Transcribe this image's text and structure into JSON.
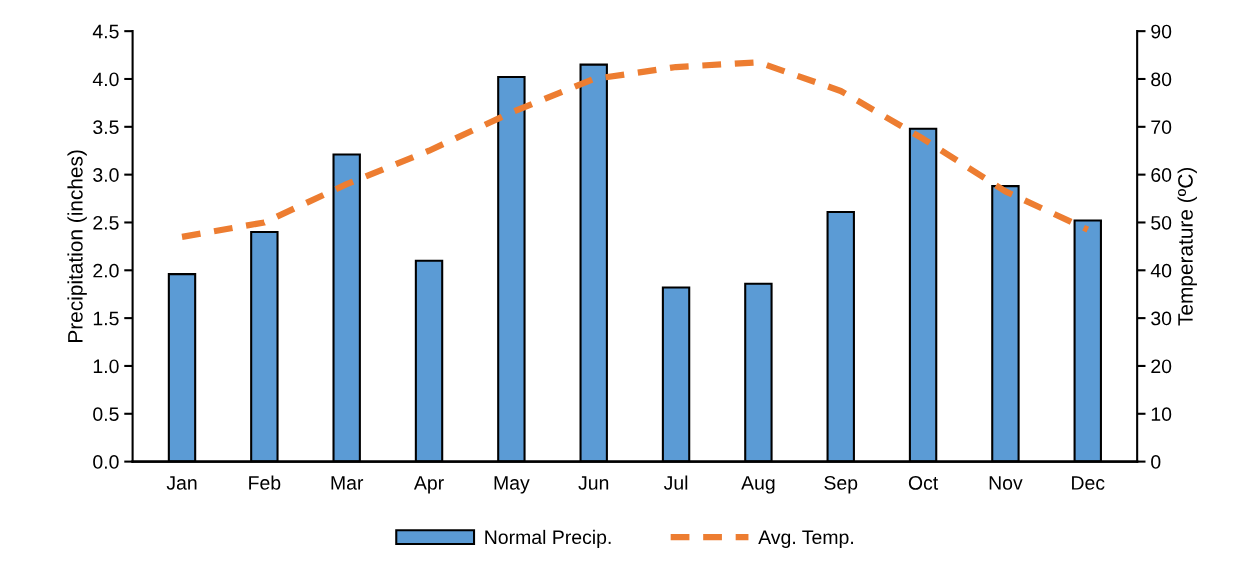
{
  "chart_data": {
    "type": "bar",
    "categories": [
      "Jan",
      "Feb",
      "Mar",
      "Apr",
      "May",
      "Jun",
      "Jul",
      "Aug",
      "Sep",
      "Oct",
      "Nov",
      "Dec"
    ],
    "series": [
      {
        "name": "Normal Precip.",
        "color": "#5b9bd5",
        "values": [
          1.96,
          2.4,
          3.21,
          2.1,
          4.02,
          4.15,
          1.82,
          1.86,
          2.61,
          3.48,
          2.88,
          2.52
        ]
      },
      {
        "name": "Avg. Temp.",
        "type": "line",
        "axis": "y2",
        "color": "#ed7d31",
        "line_style": "dashed",
        "values": [
          47,
          50,
          58,
          65,
          73,
          80,
          82.5,
          83.5,
          77.5,
          67.5,
          56.5,
          48.5
        ]
      }
    ],
    "ylabel": "Precipitation (inches)",
    "y2label": "Temperature (ºC)",
    "ylim": [
      0,
      4.5
    ],
    "yticks": [
      {
        "value": 0,
        "label": "0.0"
      },
      {
        "value": 0.5,
        "label": "0.5"
      },
      {
        "value": 1,
        "label": "1.0"
      },
      {
        "value": 1.5,
        "label": "1.5"
      },
      {
        "value": 2,
        "label": "2.0"
      },
      {
        "value": 2.5,
        "label": "2.5"
      },
      {
        "value": 3,
        "label": "3.0"
      },
      {
        "value": 3.5,
        "label": "3.5"
      },
      {
        "value": 4,
        "label": "4.0"
      },
      {
        "value": 4.5,
        "label": "4.5"
      }
    ],
    "y2lim": [
      0,
      90
    ],
    "y2ticks": [
      0,
      10,
      20,
      30,
      40,
      50,
      60,
      70,
      80,
      90
    ],
    "legend": "bottom"
  }
}
